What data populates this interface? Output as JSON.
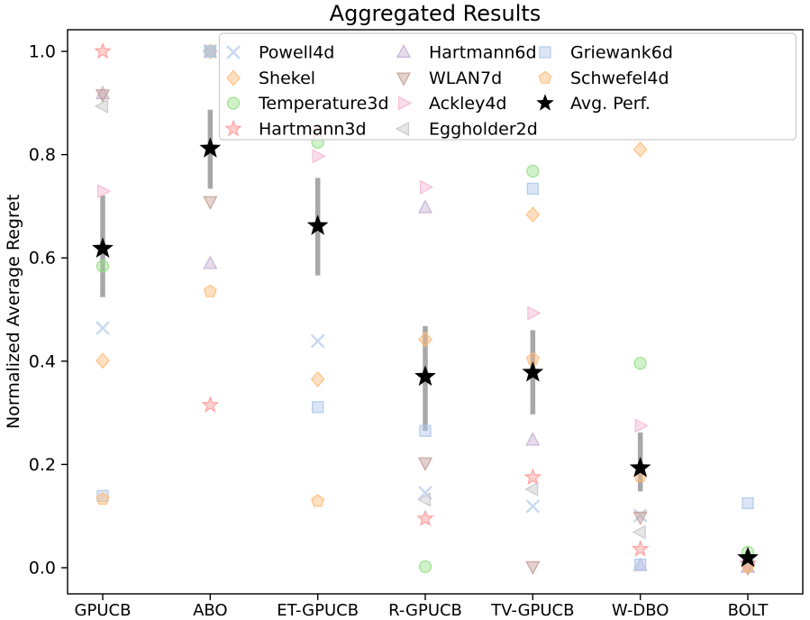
{
  "chart_data": {
    "type": "scatter",
    "title": "Aggregated Results",
    "xlabel": "",
    "ylabel": "Normalized Average Regret",
    "categories": [
      "GPUCB",
      "ABO",
      "ET-GPUCB",
      "R-GPUCB",
      "TV-GPUCB",
      "W-DBO",
      "BOLT"
    ],
    "yticks": [
      0.0,
      0.2,
      0.4,
      0.6,
      0.8,
      1.0
    ],
    "ytick_labels": [
      "0.0",
      "0.2",
      "0.4",
      "0.6",
      "0.8",
      "1.0"
    ],
    "ylim": [
      -0.05,
      1.05
    ],
    "grid": false,
    "legend_position": "upper center",
    "series": [
      {
        "name": "Powell4d",
        "marker": "x",
        "color": "#aec7e8",
        "values": [
          0.464,
          1.0,
          0.439,
          0.145,
          0.119,
          0.101,
          0.003
        ]
      },
      {
        "name": "Shekel",
        "marker": "diamond",
        "color": "#ffbb78",
        "values": [
          0.401,
          1.0,
          0.365,
          0.442,
          0.684,
          0.81,
          0.005
        ]
      },
      {
        "name": "Temperature3d",
        "marker": "circle",
        "color": "#98df8a",
        "values": [
          0.584,
          1.0,
          0.824,
          0.002,
          0.768,
          0.396,
          0.03
        ]
      },
      {
        "name": "Hartmann3d",
        "marker": "star",
        "color": "#ff9896",
        "values": [
          1.0,
          0.315,
          0.845,
          0.095,
          0.175,
          0.036,
          0.008
        ]
      },
      {
        "name": "Hartmann6d",
        "marker": "triangle-up",
        "color": "#c5b0d5",
        "values": [
          0.918,
          0.589,
          null,
          0.697,
          0.247,
          0.004,
          0.001
        ]
      },
      {
        "name": "WLAN7d",
        "marker": "triangle-down",
        "color": "#c49c94",
        "values": [
          0.916,
          0.709,
          null,
          0.203,
          0.002,
          0.098,
          0.0
        ]
      },
      {
        "name": "Ackley4d",
        "marker": "triangle-right",
        "color": "#f7b6d2",
        "values": [
          0.729,
          1.0,
          0.797,
          0.737,
          0.493,
          0.275,
          0.006
        ]
      },
      {
        "name": "Eggholder2d",
        "marker": "triangle-left",
        "color": "#c7c7c7",
        "values": [
          0.894,
          1.0,
          null,
          0.132,
          0.152,
          0.069,
          0.01
        ]
      },
      {
        "name": "Griewank6d",
        "marker": "square",
        "color": "#aec7e8",
        "values": [
          0.139,
          1.0,
          0.311,
          0.265,
          0.734,
          0.006,
          0.125
        ]
      },
      {
        "name": "Schwefel4d",
        "marker": "pentagon",
        "color": "#ffbb78",
        "values": [
          0.133,
          0.535,
          0.129,
          null,
          0.404,
          0.177,
          0.002
        ]
      }
    ],
    "avg_series": {
      "name": "Avg. Perf.",
      "marker": "star-filled",
      "color": "#000000",
      "errorbar_color": "#a8a8a8",
      "values": [
        0.618,
        0.812,
        0.662,
        0.37,
        0.378,
        0.193,
        0.019
      ],
      "err_low": [
        0.524,
        0.734,
        0.566,
        0.265,
        0.297,
        0.148,
        0.006
      ],
      "err_high": [
        0.721,
        0.887,
        0.755,
        0.468,
        0.46,
        0.262,
        0.033
      ]
    },
    "legend_columns": [
      [
        "Powell4d",
        "Shekel",
        "Temperature3d",
        "Hartmann3d"
      ],
      [
        "Hartmann6d",
        "WLAN7d",
        "Ackley4d",
        "Eggholder2d"
      ],
      [
        "Griewank6d",
        "Schwefel4d",
        "Avg. Perf."
      ]
    ]
  }
}
